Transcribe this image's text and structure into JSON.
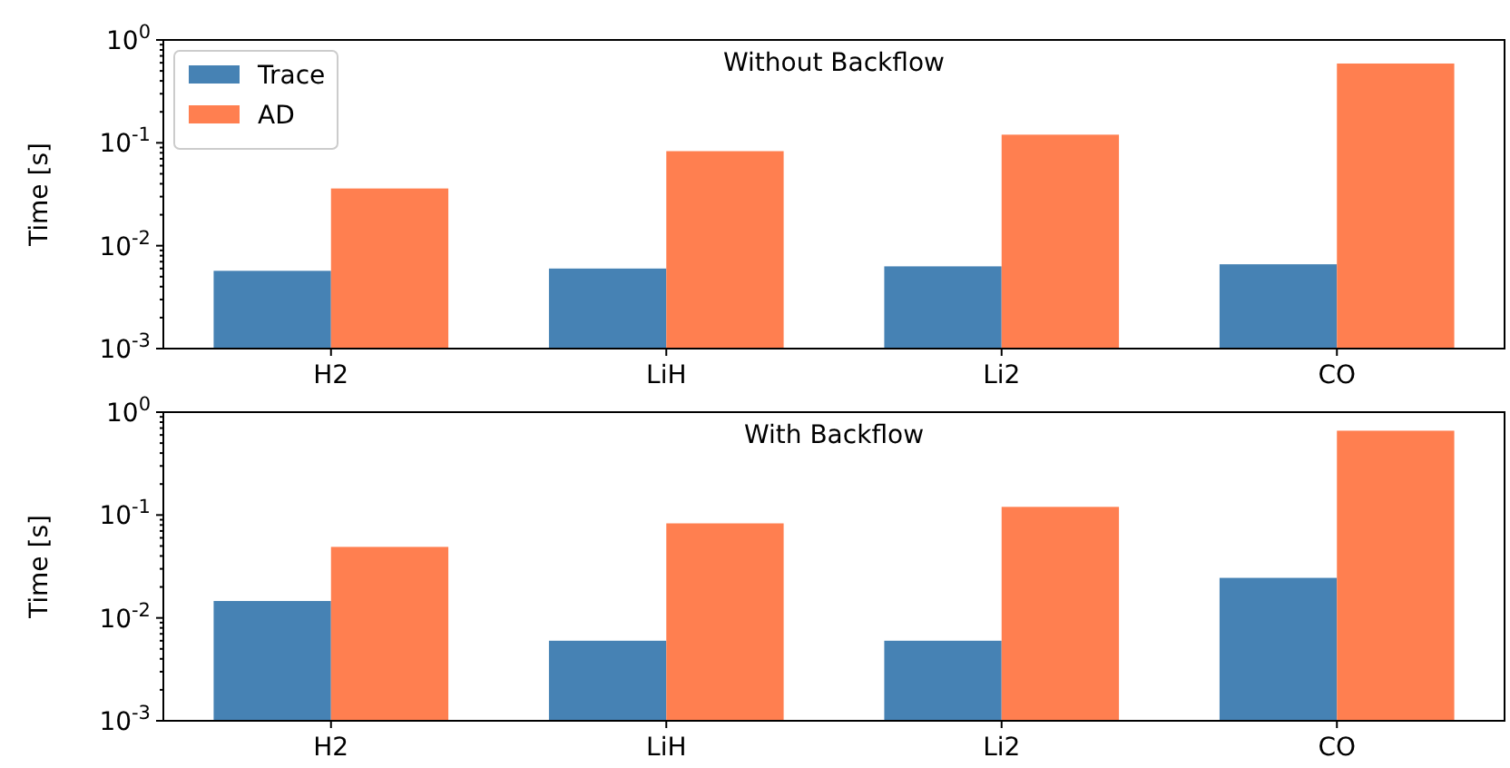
{
  "chart_data": [
    {
      "type": "bar",
      "title": "Without Backflow",
      "ylabel": "Time [s]",
      "categories": [
        "H2",
        "LiH",
        "Li2",
        "CO"
      ],
      "log": "y",
      "legend": "top left",
      "grid": false,
      "ylim": [
        0.001,
        1
      ],
      "yticks": [
        {
          "value": 0.001,
          "label": "10$^{-3}$"
        },
        {
          "value": 0.01,
          "label": "10$^{-2}$"
        },
        {
          "value": 0.1,
          "label": "10$^{-1}$"
        },
        {
          "value": 1,
          "label": "10$^{0}$"
        },
        {
          "value": 0.002,
          "label": null
        },
        {
          "value": 0.003,
          "label": null
        },
        {
          "value": 0.004,
          "label": null
        },
        {
          "value": 0.005,
          "label": null
        },
        {
          "value": 0.006,
          "label": null
        },
        {
          "value": 0.007,
          "label": null
        },
        {
          "value": 0.008,
          "label": null
        },
        {
          "value": 0.009,
          "label": null
        },
        {
          "value": 0.02,
          "label": null
        },
        {
          "value": 0.03,
          "label": null
        },
        {
          "value": 0.04,
          "label": null
        },
        {
          "value": 0.05,
          "label": null
        },
        {
          "value": 0.06,
          "label": null
        },
        {
          "value": 0.07,
          "label": null
        },
        {
          "value": 0.08,
          "label": null
        },
        {
          "value": 0.09,
          "label": null
        },
        {
          "value": 0.2,
          "label": null
        },
        {
          "value": 0.3,
          "label": null
        },
        {
          "value": 0.4,
          "label": null
        },
        {
          "value": 0.5,
          "label": null
        },
        {
          "value": 0.6,
          "label": null
        },
        {
          "value": 0.7,
          "label": null
        },
        {
          "value": 0.8,
          "label": null
        },
        {
          "value": 0.9,
          "label": null
        }
      ],
      "series": [
        {
          "name": "Trace",
          "color": "#4682b4",
          "values": [
            0.0057,
            0.006,
            0.0063,
            0.0066
          ]
        },
        {
          "name": "AD",
          "color": "#ff7f50",
          "values": [
            0.036,
            0.083,
            0.12,
            0.59
          ]
        }
      ]
    },
    {
      "type": "bar",
      "title": "With Backflow",
      "ylabel": "Time [s]",
      "categories": [
        "H2",
        "LiH",
        "Li2",
        "CO"
      ],
      "log": "y",
      "legend": false,
      "grid": false,
      "ylim": [
        0.001,
        1
      ],
      "yticks": [
        {
          "value": 0.001,
          "label": "10$^{-3}$"
        },
        {
          "value": 0.01,
          "label": "10$^{-2}$"
        },
        {
          "value": 0.1,
          "label": "10$^{-1}$"
        },
        {
          "value": 1,
          "label": "10$^{0}$"
        },
        {
          "value": 0.002,
          "label": null
        },
        {
          "value": 0.003,
          "label": null
        },
        {
          "value": 0.004,
          "label": null
        },
        {
          "value": 0.005,
          "label": null
        },
        {
          "value": 0.006,
          "label": null
        },
        {
          "value": 0.007,
          "label": null
        },
        {
          "value": 0.008,
          "label": null
        },
        {
          "value": 0.009,
          "label": null
        },
        {
          "value": 0.02,
          "label": null
        },
        {
          "value": 0.03,
          "label": null
        },
        {
          "value": 0.04,
          "label": null
        },
        {
          "value": 0.05,
          "label": null
        },
        {
          "value": 0.06,
          "label": null
        },
        {
          "value": 0.07,
          "label": null
        },
        {
          "value": 0.08,
          "label": null
        },
        {
          "value": 0.09,
          "label": null
        },
        {
          "value": 0.2,
          "label": null
        },
        {
          "value": 0.3,
          "label": null
        },
        {
          "value": 0.4,
          "label": null
        },
        {
          "value": 0.5,
          "label": null
        },
        {
          "value": 0.6,
          "label": null
        },
        {
          "value": 0.7,
          "label": null
        },
        {
          "value": 0.8,
          "label": null
        },
        {
          "value": 0.9,
          "label": null
        }
      ],
      "series": [
        {
          "color": "#4682b4",
          "values": [
            0.0146,
            0.006,
            0.006,
            0.0245
          ]
        },
        {
          "color": "#ff7f50",
          "values": [
            0.049,
            0.083,
            0.12,
            0.66
          ]
        }
      ]
    }
  ]
}
